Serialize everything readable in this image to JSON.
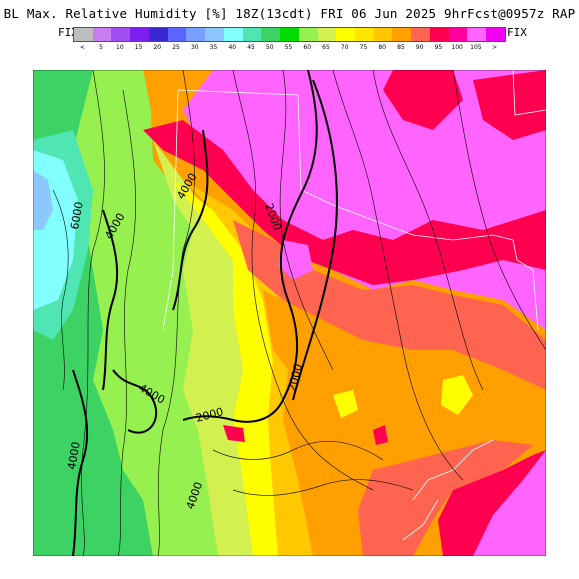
{
  "header": {
    "title": "BL Max. Relative Humidity [%] 18Z(13cdt) FRI 06 Jun 2025 9hrFcst@0957z RAP",
    "fix_left": "FIX",
    "fix_right": "FIX"
  },
  "colorbar": {
    "colors": [
      "#bebebe",
      "#c87ef0",
      "#a050f0",
      "#7d1ef0",
      "#3c28d2",
      "#5a64ff",
      "#78a0ff",
      "#8cc8ff",
      "#82ffff",
      "#50e6b4",
      "#3cd264",
      "#00dc00",
      "#96f050",
      "#d2f050",
      "#ffff00",
      "#ffe600",
      "#ffc800",
      "#ffa000",
      "#ff6450",
      "#ff0050",
      "#ff00a0",
      "#ff64ff",
      "#f000f0"
    ],
    "labels": [
      "<",
      "5",
      "10",
      "15",
      "20",
      "25",
      "30",
      "35",
      "40",
      "45",
      "50",
      "55",
      "60",
      "65",
      "70",
      "75",
      "80",
      "85",
      "90",
      "95",
      "100",
      "105",
      ">"
    ]
  },
  "map": {
    "contour_labels": [
      "6000",
      "4000",
      "4000",
      "2000",
      "2000",
      "4000",
      "2000",
      "4000",
      "4000"
    ]
  }
}
